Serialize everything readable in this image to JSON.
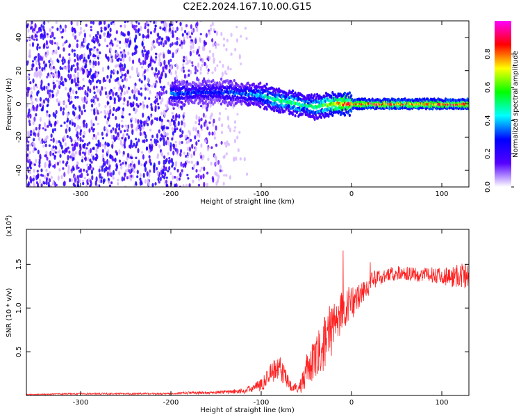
{
  "title": "C2E2.2024.167.10.00.G15",
  "chart_data": [
    {
      "type": "heatmap",
      "xlabel": "Height of straight line (km)",
      "ylabel": "Frequency (Hz)",
      "xlim": [
        -360,
        130
      ],
      "ylim": [
        -50,
        50
      ],
      "xticks": [
        -300,
        -200,
        -100,
        0,
        100
      ],
      "yticks": [
        -40,
        -20,
        0,
        20,
        40
      ],
      "colorbar": {
        "label": "Normalized spectral amplitude",
        "range": [
          0,
          1
        ],
        "ticks": [
          "0.0",
          "0.2",
          "0.4",
          "0.6",
          "0.8"
        ],
        "colormap": [
          "#ffffff",
          "#5500ff",
          "#0000ff",
          "#00ffff",
          "#00ff00",
          "#ffff00",
          "#ff0000",
          "#ff00ff"
        ]
      },
      "ridge": {
        "x": [
          -200,
          -170,
          -140,
          -120,
          -100,
          -80,
          -60,
          -40,
          -20,
          0,
          50,
          100,
          130
        ],
        "center_freq": [
          6,
          7,
          7,
          6,
          5,
          2,
          0,
          -2,
          0,
          0,
          0,
          0,
          0
        ],
        "amplitude": [
          0.35,
          0.3,
          0.3,
          0.35,
          0.45,
          0.55,
          0.55,
          0.5,
          0.7,
          0.85,
          0.85,
          0.85,
          0.85
        ]
      }
    },
    {
      "type": "line",
      "xlabel": "Height of straight line (km)",
      "ylabel": "SNR (10 * v/v)",
      "y_multiplier": "(x10",
      "y_multiplier_exp": "4",
      "y_multiplier_close": ")",
      "xlim": [
        -360,
        130
      ],
      "ylim": [
        0,
        1.9
      ],
      "xticks": [
        -300,
        -200,
        -100,
        0,
        100
      ],
      "yticks": [
        "0.5",
        "1.0",
        "1.5"
      ],
      "color": "#ff2020",
      "series": [
        {
          "x": [
            -360,
            -300,
            -250,
            -200,
            -180,
            -160,
            -140,
            -120,
            -110,
            -100,
            -95,
            -90,
            -85,
            -80,
            -75,
            -70,
            -65,
            -60,
            -55,
            -50,
            -45,
            -40,
            -35,
            -30,
            -25,
            -20,
            -15,
            -10,
            -5,
            0,
            10,
            20,
            30,
            40,
            50,
            60,
            70,
            80,
            90,
            100,
            110,
            120,
            130
          ],
          "values": [
            0.01,
            0.02,
            0.02,
            0.02,
            0.03,
            0.03,
            0.04,
            0.05,
            0.08,
            0.12,
            0.18,
            0.25,
            0.3,
            0.32,
            0.25,
            0.15,
            0.1,
            0.08,
            0.15,
            0.28,
            0.35,
            0.4,
            0.5,
            0.6,
            0.7,
            0.8,
            0.9,
            0.95,
            1.0,
            1.05,
            1.15,
            1.28,
            1.35,
            1.38,
            1.4,
            1.4,
            1.38,
            1.38,
            1.38,
            1.38,
            1.35,
            1.38,
            1.35
          ],
          "noise": [
            0.005,
            0.01,
            0.01,
            0.01,
            0.015,
            0.015,
            0.02,
            0.03,
            0.05,
            0.07,
            0.1,
            0.12,
            0.14,
            0.15,
            0.12,
            0.08,
            0.06,
            0.06,
            0.12,
            0.18,
            0.22,
            0.25,
            0.28,
            0.3,
            0.32,
            0.3,
            0.28,
            0.25,
            0.22,
            0.2,
            0.15,
            0.12,
            0.1,
            0.09,
            0.08,
            0.08,
            0.08,
            0.08,
            0.09,
            0.1,
            0.12,
            0.15,
            0.15
          ]
        }
      ]
    }
  ]
}
